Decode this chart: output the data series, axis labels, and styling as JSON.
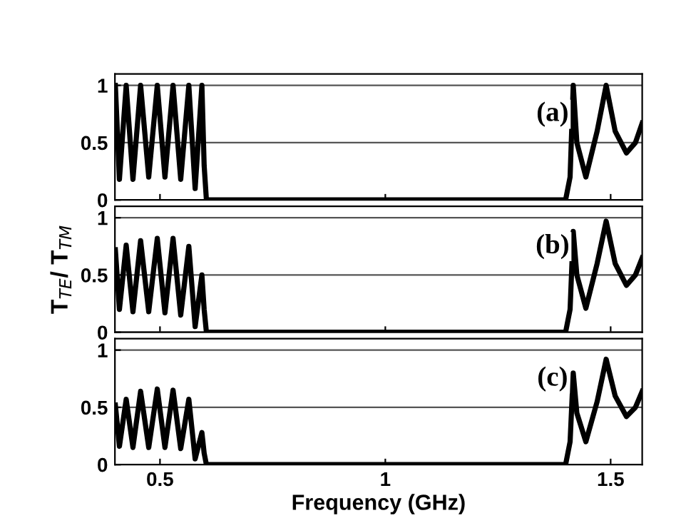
{
  "chart_data": [
    {
      "type": "line",
      "x": [
        0.401,
        0.41,
        0.425,
        0.44,
        0.457,
        0.475,
        0.494,
        0.511,
        0.529,
        0.546,
        0.564,
        0.578,
        0.593,
        0.598,
        0.603,
        0.62,
        1.0,
        1.4,
        1.41,
        1.417,
        1.425,
        1.445,
        1.47,
        1.49,
        1.51,
        1.535,
        1.555,
        1.57
      ],
      "series": [
        {
          "color": "#000000",
          "values": [
            1.0,
            0.18,
            1.0,
            0.18,
            1.0,
            0.2,
            1.0,
            0.2,
            1.0,
            0.18,
            1.0,
            0.1,
            1.0,
            0.3,
            0,
            0,
            0,
            0,
            0.2,
            1.0,
            0.5,
            0.2,
            0.6,
            1.0,
            0.6,
            0.41,
            0.5,
            0.67
          ]
        }
      ],
      "annotations": [
        "(a)"
      ],
      "xlim": [
        0.4,
        1.57
      ],
      "ylim": [
        0,
        1.1
      ],
      "xticks": [
        0.5,
        1,
        1.5
      ],
      "yticks": [
        0,
        0.5,
        1
      ],
      "grid": "y",
      "tick_labels": "y"
    },
    {
      "type": "line",
      "x": [
        0.401,
        0.41,
        0.425,
        0.44,
        0.457,
        0.475,
        0.494,
        0.511,
        0.529,
        0.546,
        0.564,
        0.578,
        0.593,
        0.598,
        0.603,
        0.62,
        1.0,
        1.4,
        1.41,
        1.417,
        1.425,
        1.445,
        1.47,
        1.49,
        1.51,
        1.535,
        1.555,
        1.57
      ],
      "series": [
        {
          "color": "#000000",
          "values": [
            0.72,
            0.2,
            0.76,
            0.18,
            0.8,
            0.18,
            0.82,
            0.17,
            0.82,
            0.15,
            0.75,
            0.05,
            0.5,
            0.2,
            0,
            0,
            0,
            0,
            0.2,
            0.88,
            0.5,
            0.21,
            0.6,
            0.97,
            0.6,
            0.41,
            0.5,
            0.65
          ]
        }
      ],
      "annotations": [
        "(b)"
      ],
      "ylabel": "T$_{TE}$/ T$_{TM}$",
      "xlim": [
        0.4,
        1.57
      ],
      "ylim": [
        0,
        1.1
      ],
      "xticks": [
        0.5,
        1,
        1.5
      ],
      "yticks": [
        0,
        0.5,
        1
      ],
      "grid": "y",
      "tick_labels": "y"
    },
    {
      "type": "line",
      "x": [
        0.401,
        0.41,
        0.425,
        0.44,
        0.457,
        0.475,
        0.494,
        0.511,
        0.529,
        0.546,
        0.564,
        0.578,
        0.593,
        0.598,
        0.603,
        0.62,
        1.0,
        1.4,
        1.41,
        1.417,
        1.425,
        1.445,
        1.47,
        1.49,
        1.51,
        1.535,
        1.555,
        1.57
      ],
      "series": [
        {
          "color": "#000000",
          "values": [
            0.52,
            0.16,
            0.57,
            0.15,
            0.64,
            0.15,
            0.66,
            0.15,
            0.65,
            0.14,
            0.57,
            0.05,
            0.28,
            0.1,
            0,
            0,
            0,
            0,
            0.2,
            0.8,
            0.45,
            0.2,
            0.55,
            0.92,
            0.6,
            0.42,
            0.5,
            0.64
          ]
        }
      ],
      "annotations": [
        "(c)"
      ],
      "xlabel": "Frequency (GHz)",
      "xlim": [
        0.4,
        1.57
      ],
      "ylim": [
        0,
        1.1
      ],
      "xticks": [
        0.5,
        1,
        1.5
      ],
      "yticks": [
        0,
        0.5,
        1
      ],
      "grid": "y"
    }
  ]
}
